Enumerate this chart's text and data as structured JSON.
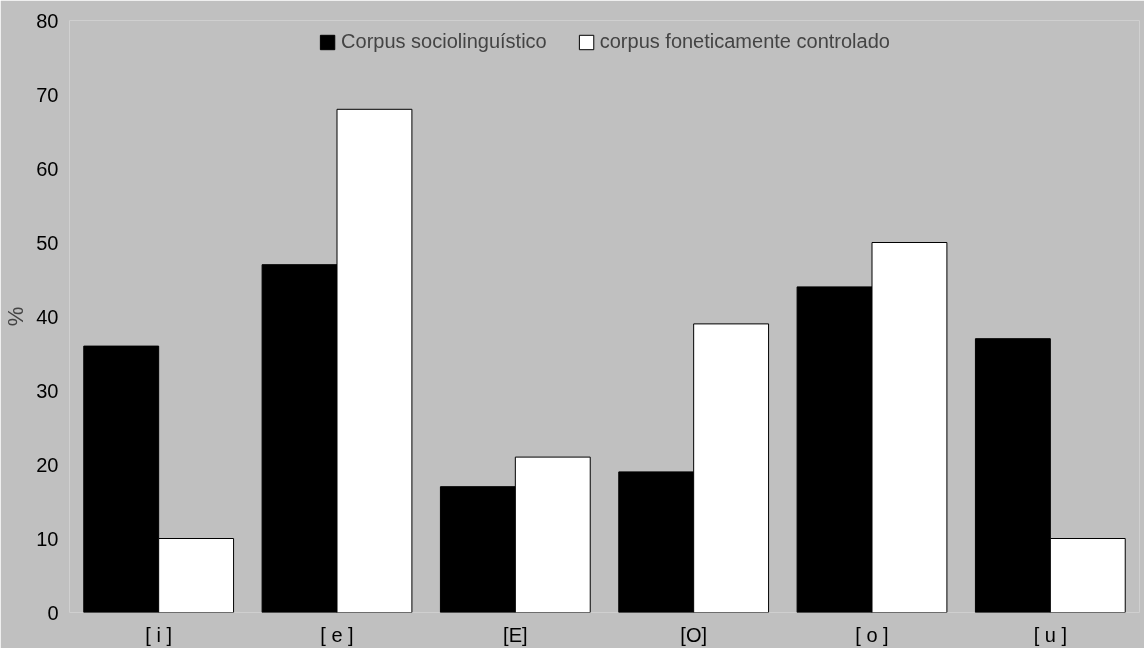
{
  "chart_data": {
    "type": "bar",
    "ylabel": "%",
    "categories": [
      "[ i ]",
      "[ e ]",
      "[E]",
      "[O]",
      "[ o ]",
      "[ u ]"
    ],
    "series": [
      {
        "name": "Corpus sociolinguístico",
        "color": "#000000",
        "values": [
          36,
          47,
          17,
          19,
          44,
          37
        ]
      },
      {
        "name": "corpus foneticamente controlado",
        "color": "#ffffff",
        "values": [
          10,
          68,
          21,
          39,
          50,
          10
        ]
      }
    ],
    "ylim": [
      0,
      80
    ],
    "yticks": [
      0,
      10,
      20,
      30,
      40,
      50,
      60,
      70,
      80
    ],
    "grid": false,
    "legend": "top"
  }
}
